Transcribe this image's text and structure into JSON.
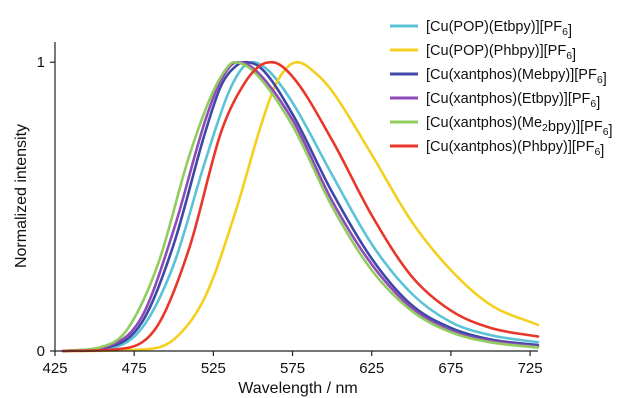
{
  "chart_data": {
    "type": "line",
    "title": "",
    "xlabel": "Wavelength / nm",
    "ylabel": "Normalized intensity",
    "xlim": [
      425,
      730
    ],
    "ylim": [
      0,
      1.07
    ],
    "x_ticks": [
      "425",
      "475",
      "525",
      "575",
      "625",
      "675",
      "725"
    ],
    "y_ticks": [
      "0",
      "1"
    ],
    "grid": false,
    "legend_position": "top-right",
    "series": [
      {
        "label_parts": [
          [
            "[Cu(POP)(Etbpy)][PF",
            ""
          ],
          [
            "6",
            "sub"
          ],
          [
            "]",
            ""
          ]
        ],
        "color": "#5bc3d6",
        "points": [
          [
            430,
            0
          ],
          [
            460,
            0.01
          ],
          [
            480,
            0.08
          ],
          [
            500,
            0.3
          ],
          [
            520,
            0.66
          ],
          [
            535,
            0.9
          ],
          [
            545,
            0.99
          ],
          [
            550,
            1.0
          ],
          [
            560,
            0.97
          ],
          [
            575,
            0.86
          ],
          [
            600,
            0.61
          ],
          [
            625,
            0.37
          ],
          [
            650,
            0.2
          ],
          [
            675,
            0.1
          ],
          [
            700,
            0.055
          ],
          [
            730,
            0.03
          ]
        ]
      },
      {
        "label_parts": [
          [
            "[Cu(POP)(Phbpy)][PF",
            ""
          ],
          [
            "6",
            "sub"
          ],
          [
            "]",
            ""
          ]
        ],
        "color": "#f5cf1e",
        "points": [
          [
            430,
            0
          ],
          [
            480,
            0.005
          ],
          [
            500,
            0.04
          ],
          [
            520,
            0.19
          ],
          [
            540,
            0.5
          ],
          [
            555,
            0.78
          ],
          [
            565,
            0.93
          ],
          [
            578,
            1.0
          ],
          [
            590,
            0.96
          ],
          [
            600,
            0.9
          ],
          [
            625,
            0.68
          ],
          [
            650,
            0.45
          ],
          [
            675,
            0.28
          ],
          [
            700,
            0.16
          ],
          [
            730,
            0.09
          ]
        ]
      },
      {
        "label_parts": [
          [
            "[Cu(xantphos)(Mebpy)][PF",
            ""
          ],
          [
            "6",
            "sub"
          ],
          [
            "]",
            ""
          ]
        ],
        "color": "#3f48a6",
        "points": [
          [
            430,
            0
          ],
          [
            460,
            0.015
          ],
          [
            480,
            0.1
          ],
          [
            500,
            0.37
          ],
          [
            520,
            0.76
          ],
          [
            530,
            0.92
          ],
          [
            540,
            0.99
          ],
          [
            545,
            1.0
          ],
          [
            555,
            0.98
          ],
          [
            575,
            0.82
          ],
          [
            600,
            0.55
          ],
          [
            625,
            0.32
          ],
          [
            650,
            0.16
          ],
          [
            675,
            0.08
          ],
          [
            700,
            0.04
          ],
          [
            730,
            0.02
          ]
        ]
      },
      {
        "label_parts": [
          [
            "[Cu(xantphos)(Etbpy)][PF",
            ""
          ],
          [
            "6",
            "sub"
          ],
          [
            "]",
            ""
          ]
        ],
        "color": "#8e4bb8",
        "points": [
          [
            430,
            0
          ],
          [
            460,
            0.02
          ],
          [
            480,
            0.12
          ],
          [
            500,
            0.42
          ],
          [
            520,
            0.8
          ],
          [
            530,
            0.94
          ],
          [
            540,
            1.0
          ],
          [
            550,
            0.98
          ],
          [
            575,
            0.8
          ],
          [
            600,
            0.52
          ],
          [
            625,
            0.3
          ],
          [
            650,
            0.15
          ],
          [
            675,
            0.07
          ],
          [
            700,
            0.035
          ],
          [
            730,
            0.015
          ]
        ]
      },
      {
        "label_parts": [
          [
            "[Cu(xantphos)(Me",
            ""
          ],
          [
            "2",
            "sub"
          ],
          [
            "bpy)][PF",
            ""
          ],
          [
            "6",
            "sub"
          ],
          [
            "]",
            ""
          ]
        ],
        "color": "#92cc5f",
        "points": [
          [
            430,
            0
          ],
          [
            455,
            0.015
          ],
          [
            470,
            0.07
          ],
          [
            490,
            0.3
          ],
          [
            510,
            0.68
          ],
          [
            525,
            0.9
          ],
          [
            535,
            0.99
          ],
          [
            538,
            1.0
          ],
          [
            550,
            0.97
          ],
          [
            575,
            0.78
          ],
          [
            600,
            0.5
          ],
          [
            625,
            0.28
          ],
          [
            650,
            0.14
          ],
          [
            675,
            0.065
          ],
          [
            700,
            0.03
          ],
          [
            730,
            0.012
          ]
        ]
      },
      {
        "label_parts": [
          [
            "[Cu(xantphos)(Phbpy)][PF",
            ""
          ],
          [
            "6",
            "sub"
          ],
          [
            "]",
            ""
          ]
        ],
        "color": "#e8372a",
        "points": [
          [
            430,
            0
          ],
          [
            470,
            0.01
          ],
          [
            490,
            0.09
          ],
          [
            510,
            0.36
          ],
          [
            530,
            0.76
          ],
          [
            545,
            0.93
          ],
          [
            555,
            0.99
          ],
          [
            562,
            1.0
          ],
          [
            575,
            0.95
          ],
          [
            600,
            0.73
          ],
          [
            625,
            0.47
          ],
          [
            650,
            0.26
          ],
          [
            675,
            0.14
          ],
          [
            700,
            0.08
          ],
          [
            730,
            0.05
          ]
        ]
      }
    ]
  }
}
